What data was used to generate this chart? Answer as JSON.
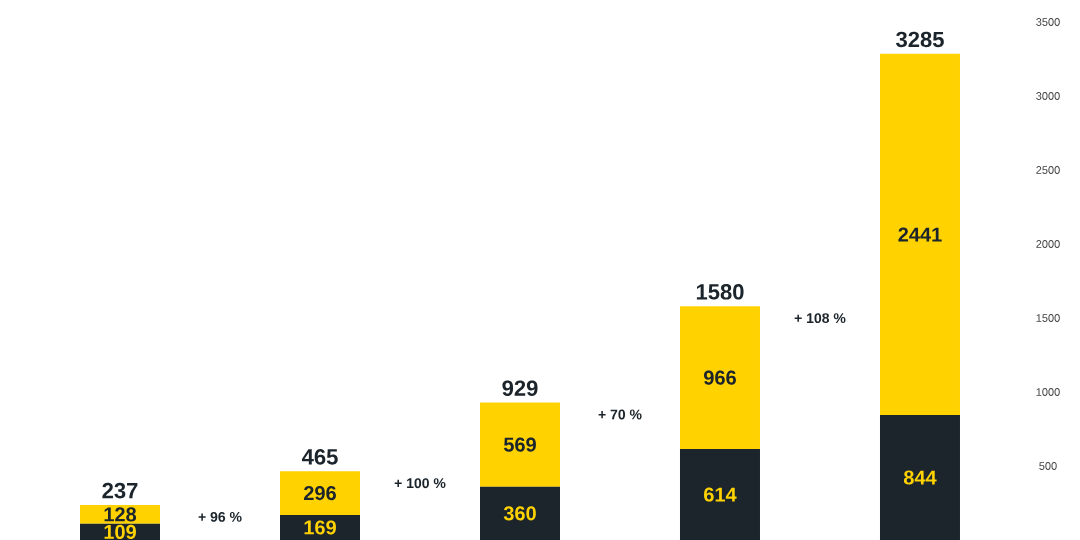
{
  "chart_data": {
    "type": "bar",
    "stacked": true,
    "categories": [
      null,
      null,
      null,
      null,
      null
    ],
    "series": [
      {
        "color": "#1c252c",
        "values": [
          109,
          169,
          360,
          614,
          844
        ]
      },
      {
        "color": "#ffd200",
        "values": [
          128,
          296,
          569,
          966,
          2441
        ]
      }
    ],
    "totals": [
      "237",
      "465",
      "929",
      "1580",
      "3285"
    ],
    "data_labels": true,
    "ylim": [
      0,
      3500
    ],
    "yticks": [
      500,
      1000,
      1500,
      2000,
      2500,
      3000,
      3500
    ],
    "annotations": [
      "+ 96 %",
      "+ 100 %",
      "+ 70 %",
      "+ 108 %"
    ]
  }
}
